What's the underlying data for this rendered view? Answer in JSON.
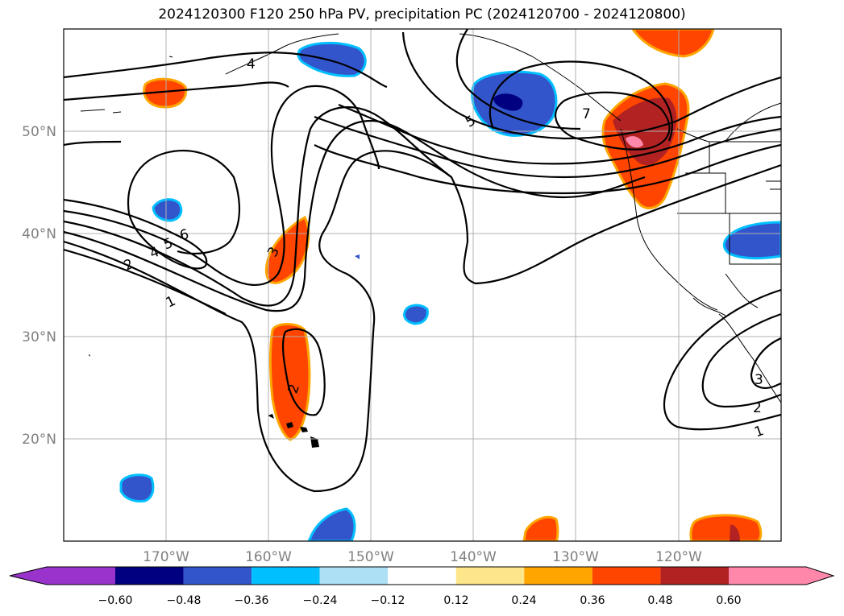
{
  "title": "2024120300 F120 250 hPa PV, precipitation PC (2024120700 - 2024120800)",
  "axes": {
    "lon_labels": [
      "170°W",
      "160°W",
      "150°W",
      "140°W",
      "130°W",
      "120°W"
    ],
    "lat_labels": [
      "50°N",
      "40°N",
      "30°N",
      "20°N"
    ]
  },
  "colorbar": {
    "ticks": [
      "−0.60",
      "−0.48",
      "−0.36",
      "−0.24",
      "−0.12",
      "0.12",
      "0.24",
      "0.36",
      "0.48",
      "0.60"
    ],
    "colors": [
      "#9933cc",
      "#000080",
      "#3355cc",
      "#00bfff",
      "#ade0f5",
      "#ffffff",
      "#fde68a",
      "#ffa500",
      "#ff4500",
      "#b22222",
      "#ff88aa"
    ]
  },
  "contour_labels": [
    "4",
    "5",
    "7",
    "6",
    "5",
    "4",
    "2",
    "1",
    "3",
    "2",
    "3",
    "2",
    "1"
  ]
}
